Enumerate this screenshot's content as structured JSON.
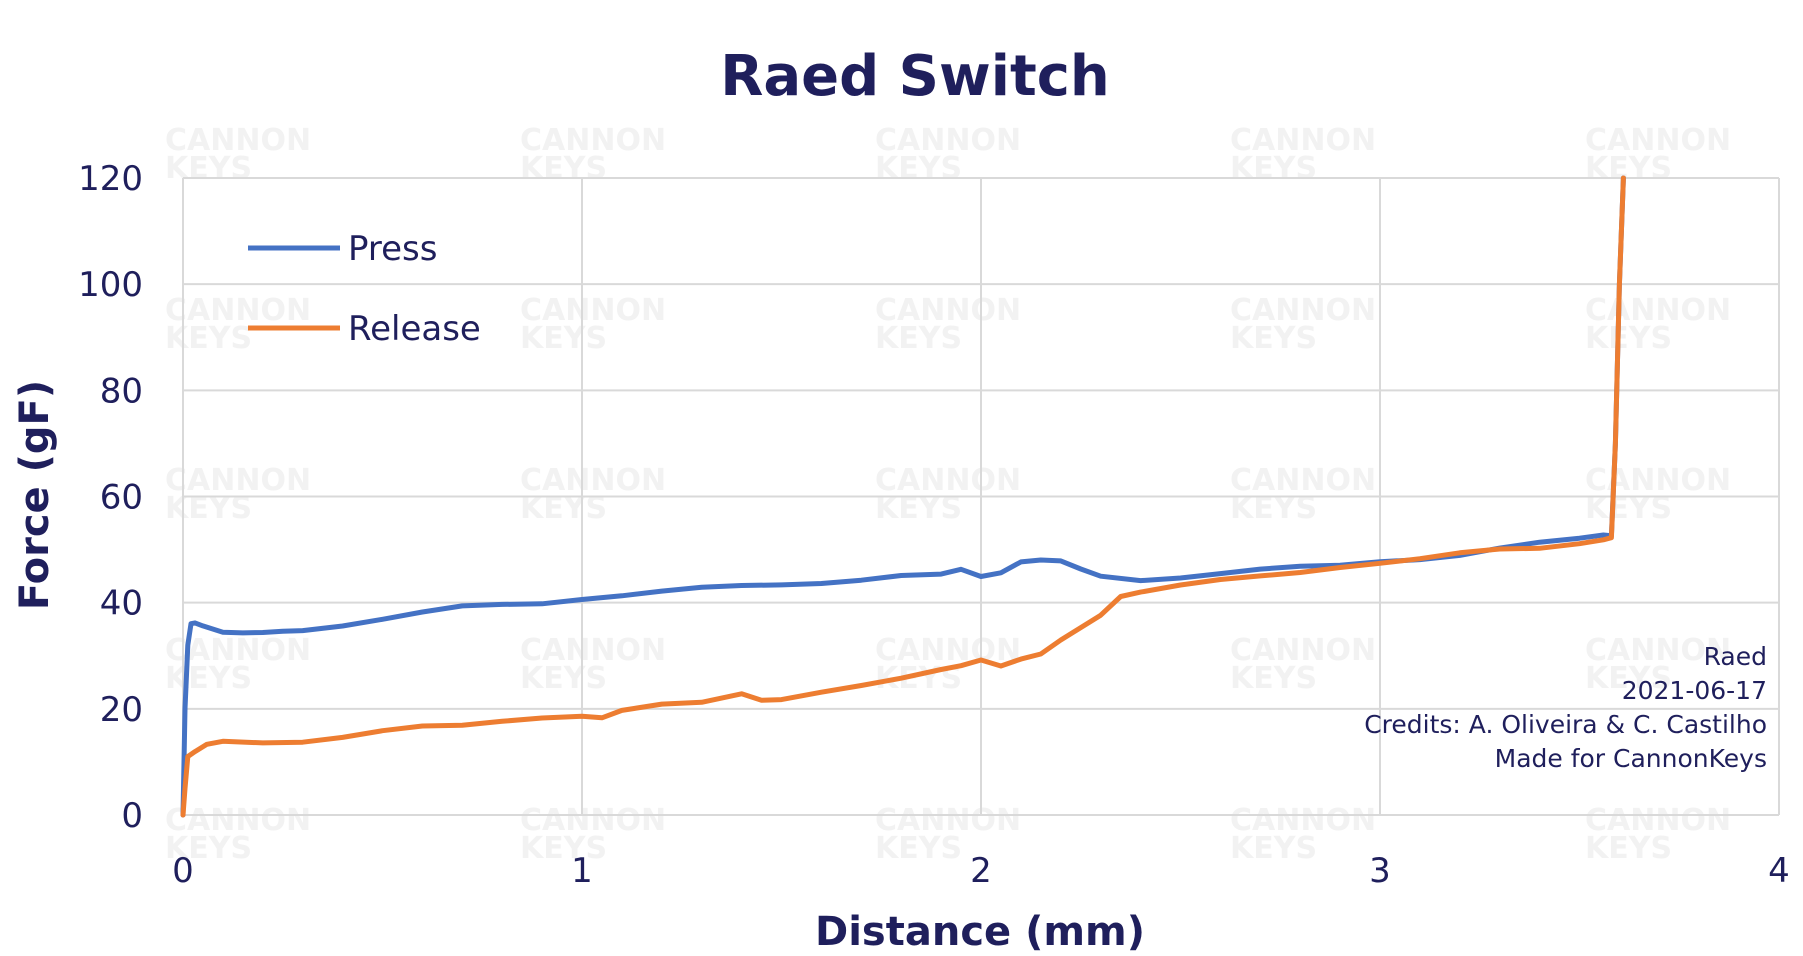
{
  "chart_data": {
    "type": "line",
    "title": "Raed Switch",
    "xlabel": "Distance (mm)",
    "ylabel": "Force (gF)",
    "xlim": [
      0,
      4
    ],
    "ylim": [
      0,
      120
    ],
    "xticks": [
      "0",
      "1",
      "2",
      "3",
      "4"
    ],
    "yticks": [
      "0",
      "20",
      "40",
      "60",
      "80",
      "100",
      "120"
    ],
    "grid": true,
    "legend": "top-left",
    "series": [
      {
        "name": "Press",
        "color": "#4472c4",
        "x": [
          0,
          0.005,
          0.012,
          0.02,
          0.03,
          0.05,
          0.1,
          0.15,
          0.2,
          0.25,
          0.3,
          0.4,
          0.5,
          0.6,
          0.7,
          0.8,
          0.9,
          1.0,
          1.1,
          1.2,
          1.3,
          1.4,
          1.5,
          1.6,
          1.7,
          1.8,
          1.9,
          1.95,
          2.0,
          2.05,
          2.1,
          2.15,
          2.2,
          2.25,
          2.3,
          2.4,
          2.5,
          2.6,
          2.7,
          2.8,
          2.9,
          3.0,
          3.1,
          3.2,
          3.3,
          3.4,
          3.5,
          3.56,
          3.58,
          3.59,
          3.6,
          3.61
        ],
        "y": [
          0,
          20,
          32,
          36,
          36.5,
          36,
          34.5,
          34,
          34,
          34.5,
          35,
          36,
          37,
          38,
          39,
          39.5,
          40,
          41,
          41.5,
          42,
          42.5,
          43,
          43.5,
          44,
          44.5,
          45,
          45,
          46,
          45,
          46,
          48,
          48,
          47.5,
          46,
          45,
          44.5,
          45,
          45.5,
          46,
          46.5,
          47,
          48,
          48.5,
          49,
          50,
          51,
          52,
          53,
          53,
          70,
          100,
          120
        ]
      },
      {
        "name": "Release",
        "color": "#ed7d31",
        "x": [
          0,
          0.005,
          0.012,
          0.03,
          0.06,
          0.1,
          0.2,
          0.3,
          0.4,
          0.5,
          0.6,
          0.7,
          0.8,
          0.9,
          1.0,
          1.05,
          1.1,
          1.2,
          1.3,
          1.4,
          1.45,
          1.5,
          1.6,
          1.7,
          1.8,
          1.9,
          1.95,
          2.0,
          2.05,
          2.1,
          2.15,
          2.2,
          2.3,
          2.35,
          2.4,
          2.5,
          2.6,
          2.7,
          2.8,
          2.9,
          3.0,
          3.1,
          3.2,
          3.3,
          3.4,
          3.5,
          3.56,
          3.58,
          3.59,
          3.6,
          3.61
        ],
        "y": [
          0,
          5,
          11,
          12,
          13,
          13.5,
          13.5,
          14,
          15,
          16,
          16.5,
          16.5,
          17.5,
          18.5,
          19,
          18.5,
          19.5,
          20.5,
          21,
          23,
          22,
          22,
          23,
          24,
          25.5,
          27.5,
          28.5,
          29.5,
          28,
          29,
          30,
          33,
          38,
          41.5,
          42,
          43,
          44,
          45,
          46,
          47,
          47.5,
          48,
          49,
          50,
          50.5,
          51.5,
          52,
          52,
          70,
          100,
          120
        ]
      }
    ],
    "annotation": [
      "Raed",
      "2021-06-17",
      "Credits: A. Oliveira & C. Castilho",
      "Made for CannonKeys"
    ],
    "watermark": [
      "CANNON",
      "KEYS"
    ]
  }
}
